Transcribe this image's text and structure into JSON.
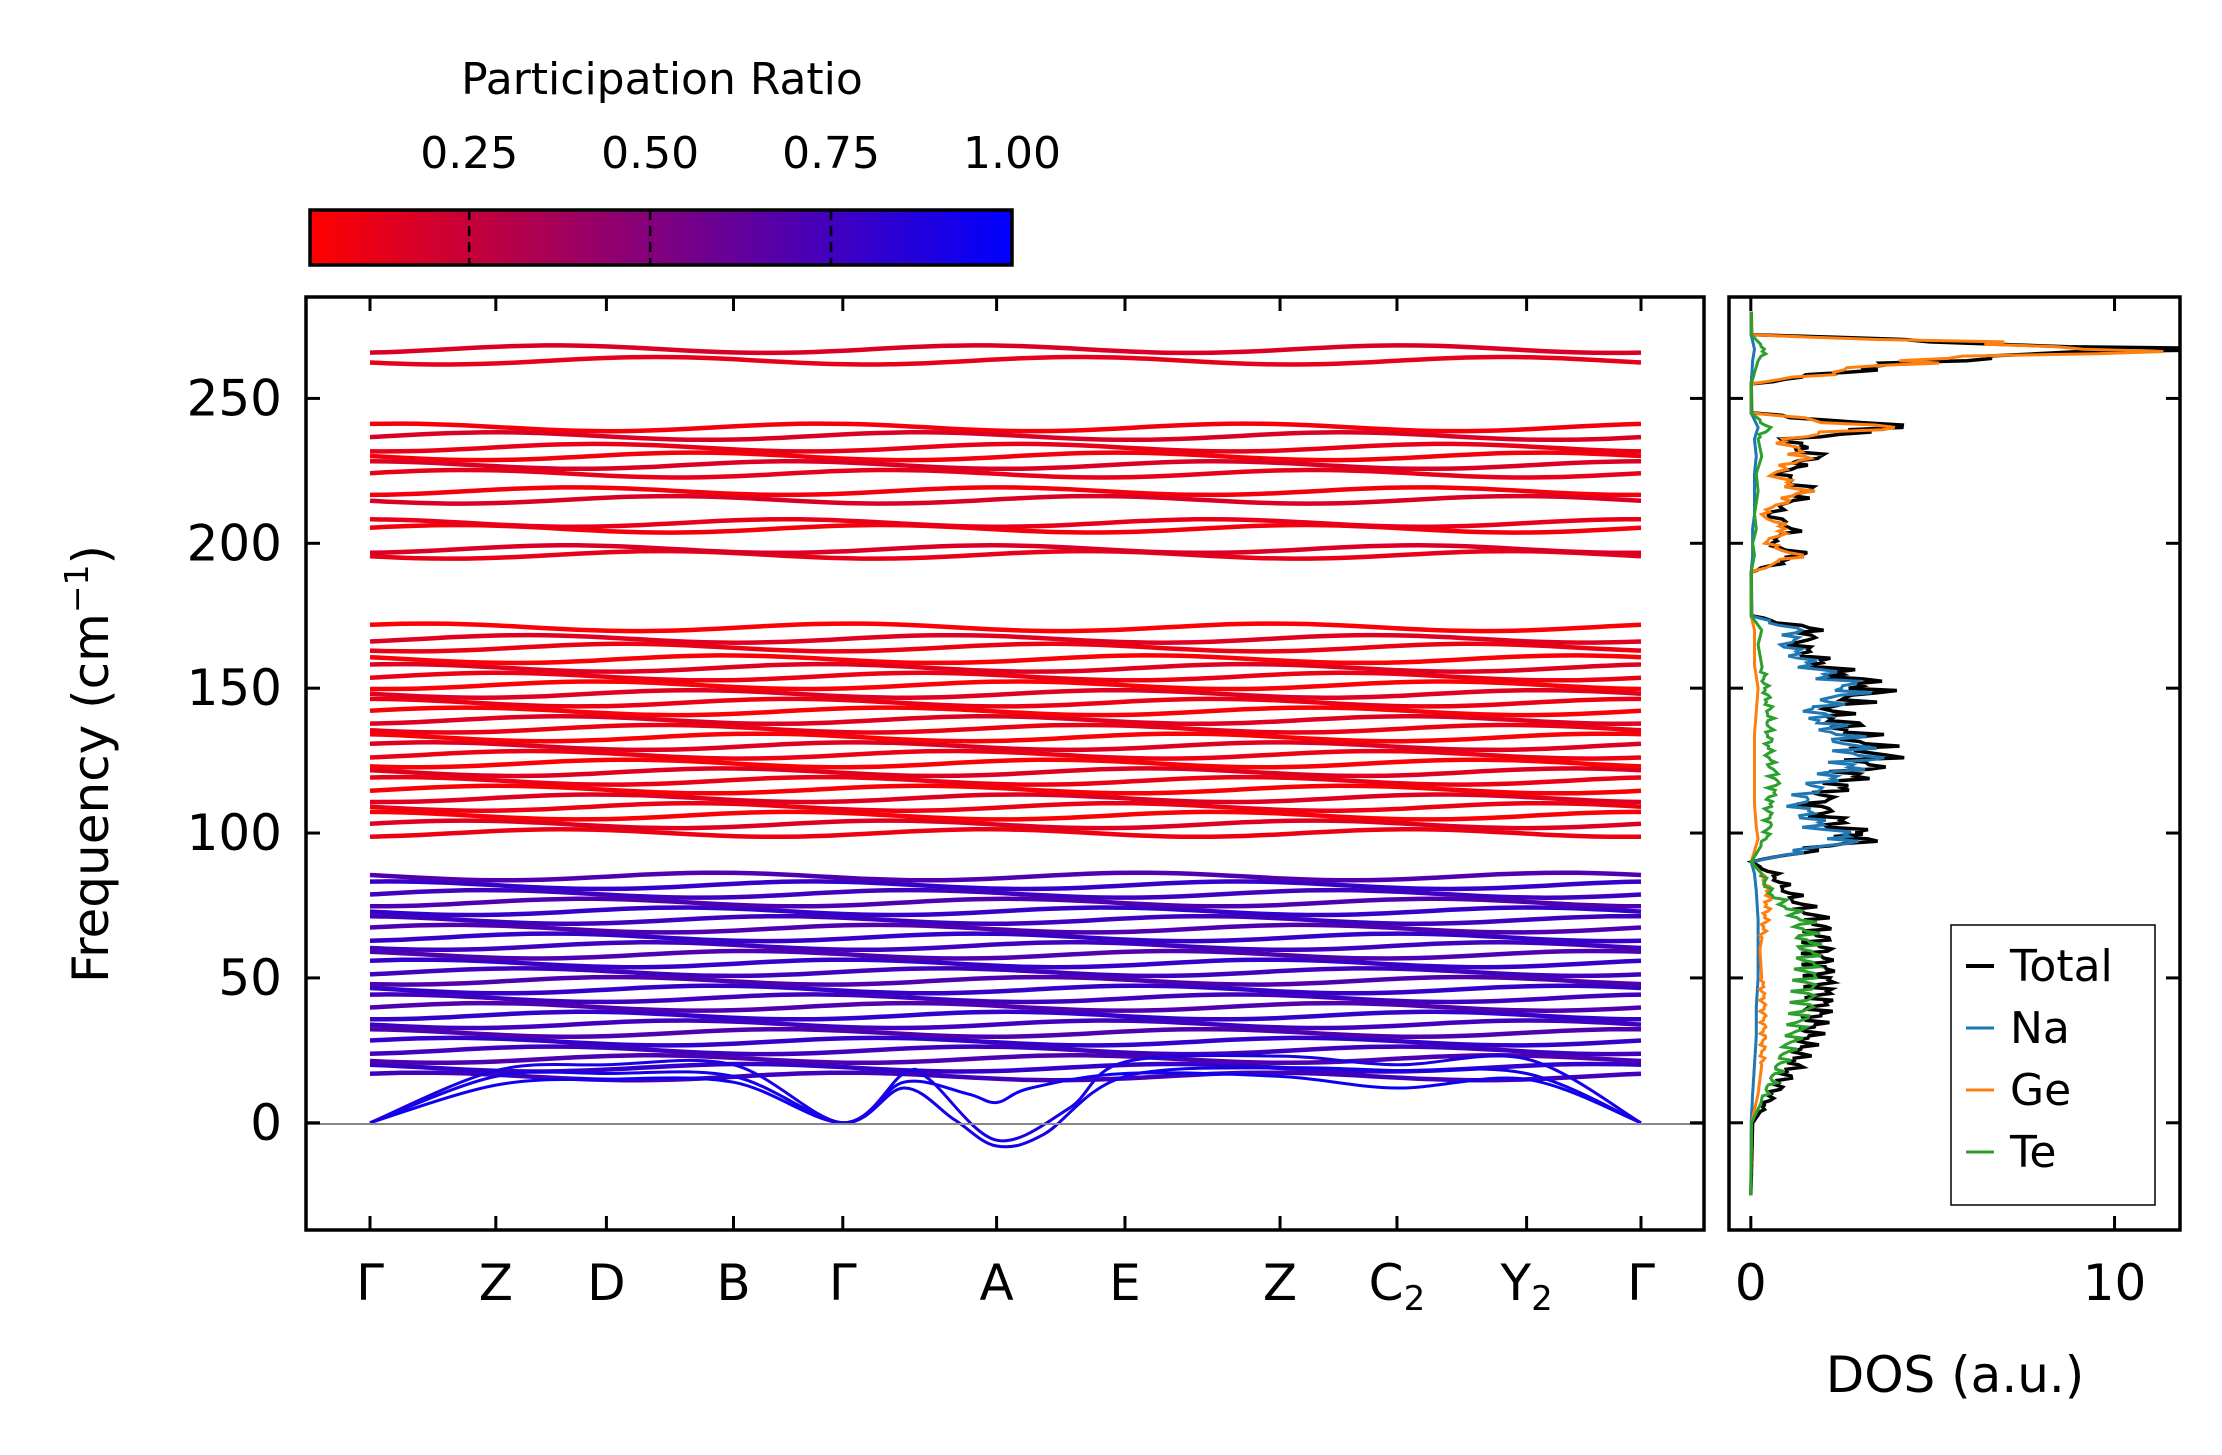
{
  "chart_data": [
    {
      "type": "line",
      "name": "phonon-band-structure",
      "ylabel": "Frequency (cm",
      "ylabel_sup": "−1",
      "ylabel_close": ")",
      "ylim": [
        -37,
        285
      ],
      "yticks": [
        0,
        50,
        100,
        150,
        200,
        250
      ],
      "ytick_labels": [
        "0",
        "50",
        "100",
        "150",
        "200",
        "250"
      ],
      "high_symmetry_points": [
        {
          "label": "Γ",
          "sub": "",
          "x": 0.0
        },
        {
          "label": "Z",
          "sub": "",
          "x": 0.099
        },
        {
          "label": "D",
          "sub": "",
          "x": 0.186
        },
        {
          "label": "B",
          "sub": "",
          "x": 0.286
        },
        {
          "label": "Γ",
          "sub": "",
          "x": 0.372
        },
        {
          "label": "A",
          "sub": "",
          "x": 0.493
        },
        {
          "label": "E",
          "sub": "",
          "x": 0.594
        },
        {
          "label": "Z",
          "sub": "",
          "x": 0.716
        },
        {
          "label": "C",
          "sub": "2",
          "x": 0.808
        },
        {
          "label": "Y",
          "sub": "2",
          "x": 0.91
        },
        {
          "label": "Γ",
          "sub": "",
          "x": 1.0
        }
      ],
      "flat_band_groups": [
        {
          "name": "high-optical",
          "frequencies": [
            196,
            198,
            205,
            207,
            215,
            218,
            224,
            227,
            230,
            233,
            237,
            240,
            263,
            267
          ],
          "participation": 0.12
        },
        {
          "name": "mid-optical",
          "frequencies": [
            100,
            103,
            106,
            109,
            112,
            115,
            118,
            121,
            124,
            127,
            130,
            133,
            136,
            139,
            142,
            145,
            148,
            151,
            154,
            157,
            160,
            164,
            167,
            171
          ],
          "participation": 0.1
        },
        {
          "name": "low-optical",
          "frequencies": [
            16,
            19,
            22,
            25,
            28,
            31,
            34,
            37,
            40,
            43,
            46,
            49,
            52,
            55,
            58,
            61,
            64,
            67,
            70,
            73,
            76,
            79,
            82,
            85
          ],
          "participation": 0.75
        }
      ],
      "acoustic_branches": [
        {
          "name": "acoustic-1",
          "participation": 0.95,
          "x": [
            0,
            0.099,
            0.186,
            0.286,
            0.372,
            0.42,
            0.47,
            0.493,
            0.52,
            0.594,
            0.716,
            0.808,
            0.91,
            1.0
          ],
          "y": [
            0,
            13,
            15,
            14,
            0,
            14,
            10,
            7,
            12,
            17,
            16,
            12,
            15,
            0
          ]
        },
        {
          "name": "acoustic-2",
          "participation": 0.92,
          "x": [
            0,
            0.099,
            0.186,
            0.286,
            0.372,
            0.42,
            0.46,
            0.493,
            0.53,
            0.594,
            0.716,
            0.808,
            0.91,
            1.0
          ],
          "y": [
            0,
            16,
            17,
            16,
            0,
            12,
            1,
            -8,
            -4,
            16,
            19,
            18,
            17,
            0
          ]
        },
        {
          "name": "acoustic-3",
          "participation": 0.9,
          "x": [
            0,
            0.099,
            0.186,
            0.286,
            0.372,
            0.42,
            0.44,
            0.493,
            0.55,
            0.594,
            0.716,
            0.808,
            0.91,
            1.0
          ],
          "y": [
            0,
            18,
            20,
            20,
            0,
            17,
            15,
            -6,
            5,
            21,
            23,
            20,
            22,
            0
          ]
        }
      ],
      "zero_line": 0
    },
    {
      "type": "line",
      "name": "density-of-states",
      "xlabel": "DOS (a.u.)",
      "xlim": [
        -0.6,
        11.8
      ],
      "xticks": [
        0,
        10
      ],
      "xtick_labels": [
        "0",
        "10"
      ],
      "ylim": [
        -37,
        285
      ],
      "frequency_grid_cm-1": [
        -25,
        0,
        10,
        20,
        30,
        40,
        50,
        60,
        70,
        80,
        86,
        90,
        98,
        102,
        110,
        118,
        126,
        134,
        142,
        150,
        158,
        165,
        170,
        175,
        190,
        196,
        200,
        205,
        210,
        218,
        224,
        230,
        236,
        240,
        245,
        255,
        263,
        267,
        272,
        280
      ],
      "series": [
        {
          "name": "Total",
          "color": "#000000",
          "values": [
            0,
            0.05,
            0.6,
            1.2,
            1.6,
            1.9,
            2.0,
            1.9,
            1.8,
            1.0,
            0.6,
            0.02,
            3.2,
            2.5,
            1.8,
            2.6,
            3.5,
            2.9,
            2.2,
            3.4,
            2.0,
            1.3,
            1.8,
            0.02,
            0.01,
            1.4,
            0.5,
            1.2,
            0.5,
            1.6,
            0.8,
            1.8,
            1.0,
            4.3,
            0.02,
            0.01,
            4.8,
            11.2,
            0.02,
            0.01
          ]
        },
        {
          "name": "Na",
          "color": "#1f77b4",
          "values": [
            0,
            0.01,
            0.05,
            0.1,
            0.15,
            0.15,
            0.2,
            0.2,
            0.2,
            0.15,
            0.1,
            0.01,
            2.9,
            1.9,
            1.3,
            2.0,
            3.1,
            2.4,
            1.7,
            2.8,
            1.6,
            1.0,
            1.3,
            0.02,
            0.01,
            0.05,
            0.05,
            0.05,
            0.1,
            0.1,
            0.1,
            0.15,
            0.1,
            0.2,
            0.01,
            0.01,
            0.05,
            0.1,
            0.01,
            0.01
          ]
        },
        {
          "name": "Ge",
          "color": "#ff7f0e",
          "values": [
            0,
            0.02,
            0.2,
            0.3,
            0.35,
            0.35,
            0.3,
            0.25,
            0.4,
            0.5,
            0.3,
            0.01,
            0.2,
            0.15,
            0.1,
            0.1,
            0.1,
            0.1,
            0.15,
            0.2,
            0.1,
            0.1,
            0.1,
            0.01,
            0.01,
            1.3,
            0.4,
            1.0,
            0.3,
            1.4,
            0.6,
            1.5,
            0.8,
            3.7,
            0.01,
            0.01,
            4.5,
            10.8,
            0.02,
            0.01
          ]
        },
        {
          "name": "Te",
          "color": "#2ca02c",
          "values": [
            0,
            0.02,
            0.4,
            0.8,
            1.2,
            1.5,
            1.6,
            1.6,
            1.4,
            0.5,
            0.3,
            0.01,
            0.4,
            0.5,
            0.5,
            0.7,
            0.5,
            0.5,
            0.5,
            0.4,
            0.3,
            0.2,
            0.3,
            0.01,
            0.01,
            0.1,
            0.05,
            0.15,
            0.1,
            0.2,
            0.15,
            0.3,
            0.2,
            0.5,
            0.01,
            0.01,
            0.2,
            0.4,
            0.01,
            0.01
          ]
        }
      ],
      "legend": {
        "placement": "bottom-right",
        "entries": [
          "Total",
          "Na",
          "Ge",
          "Te"
        ]
      }
    }
  ],
  "colorbar": {
    "title": "Participation Ratio",
    "ticks": [
      0.25,
      0.5,
      0.75,
      1.0
    ],
    "tick_labels": [
      "0.25",
      "0.50",
      "0.75",
      "1.00"
    ],
    "range": [
      0.03,
      1.0
    ],
    "color_low": "#ff0000",
    "color_high": "#0000ff"
  }
}
